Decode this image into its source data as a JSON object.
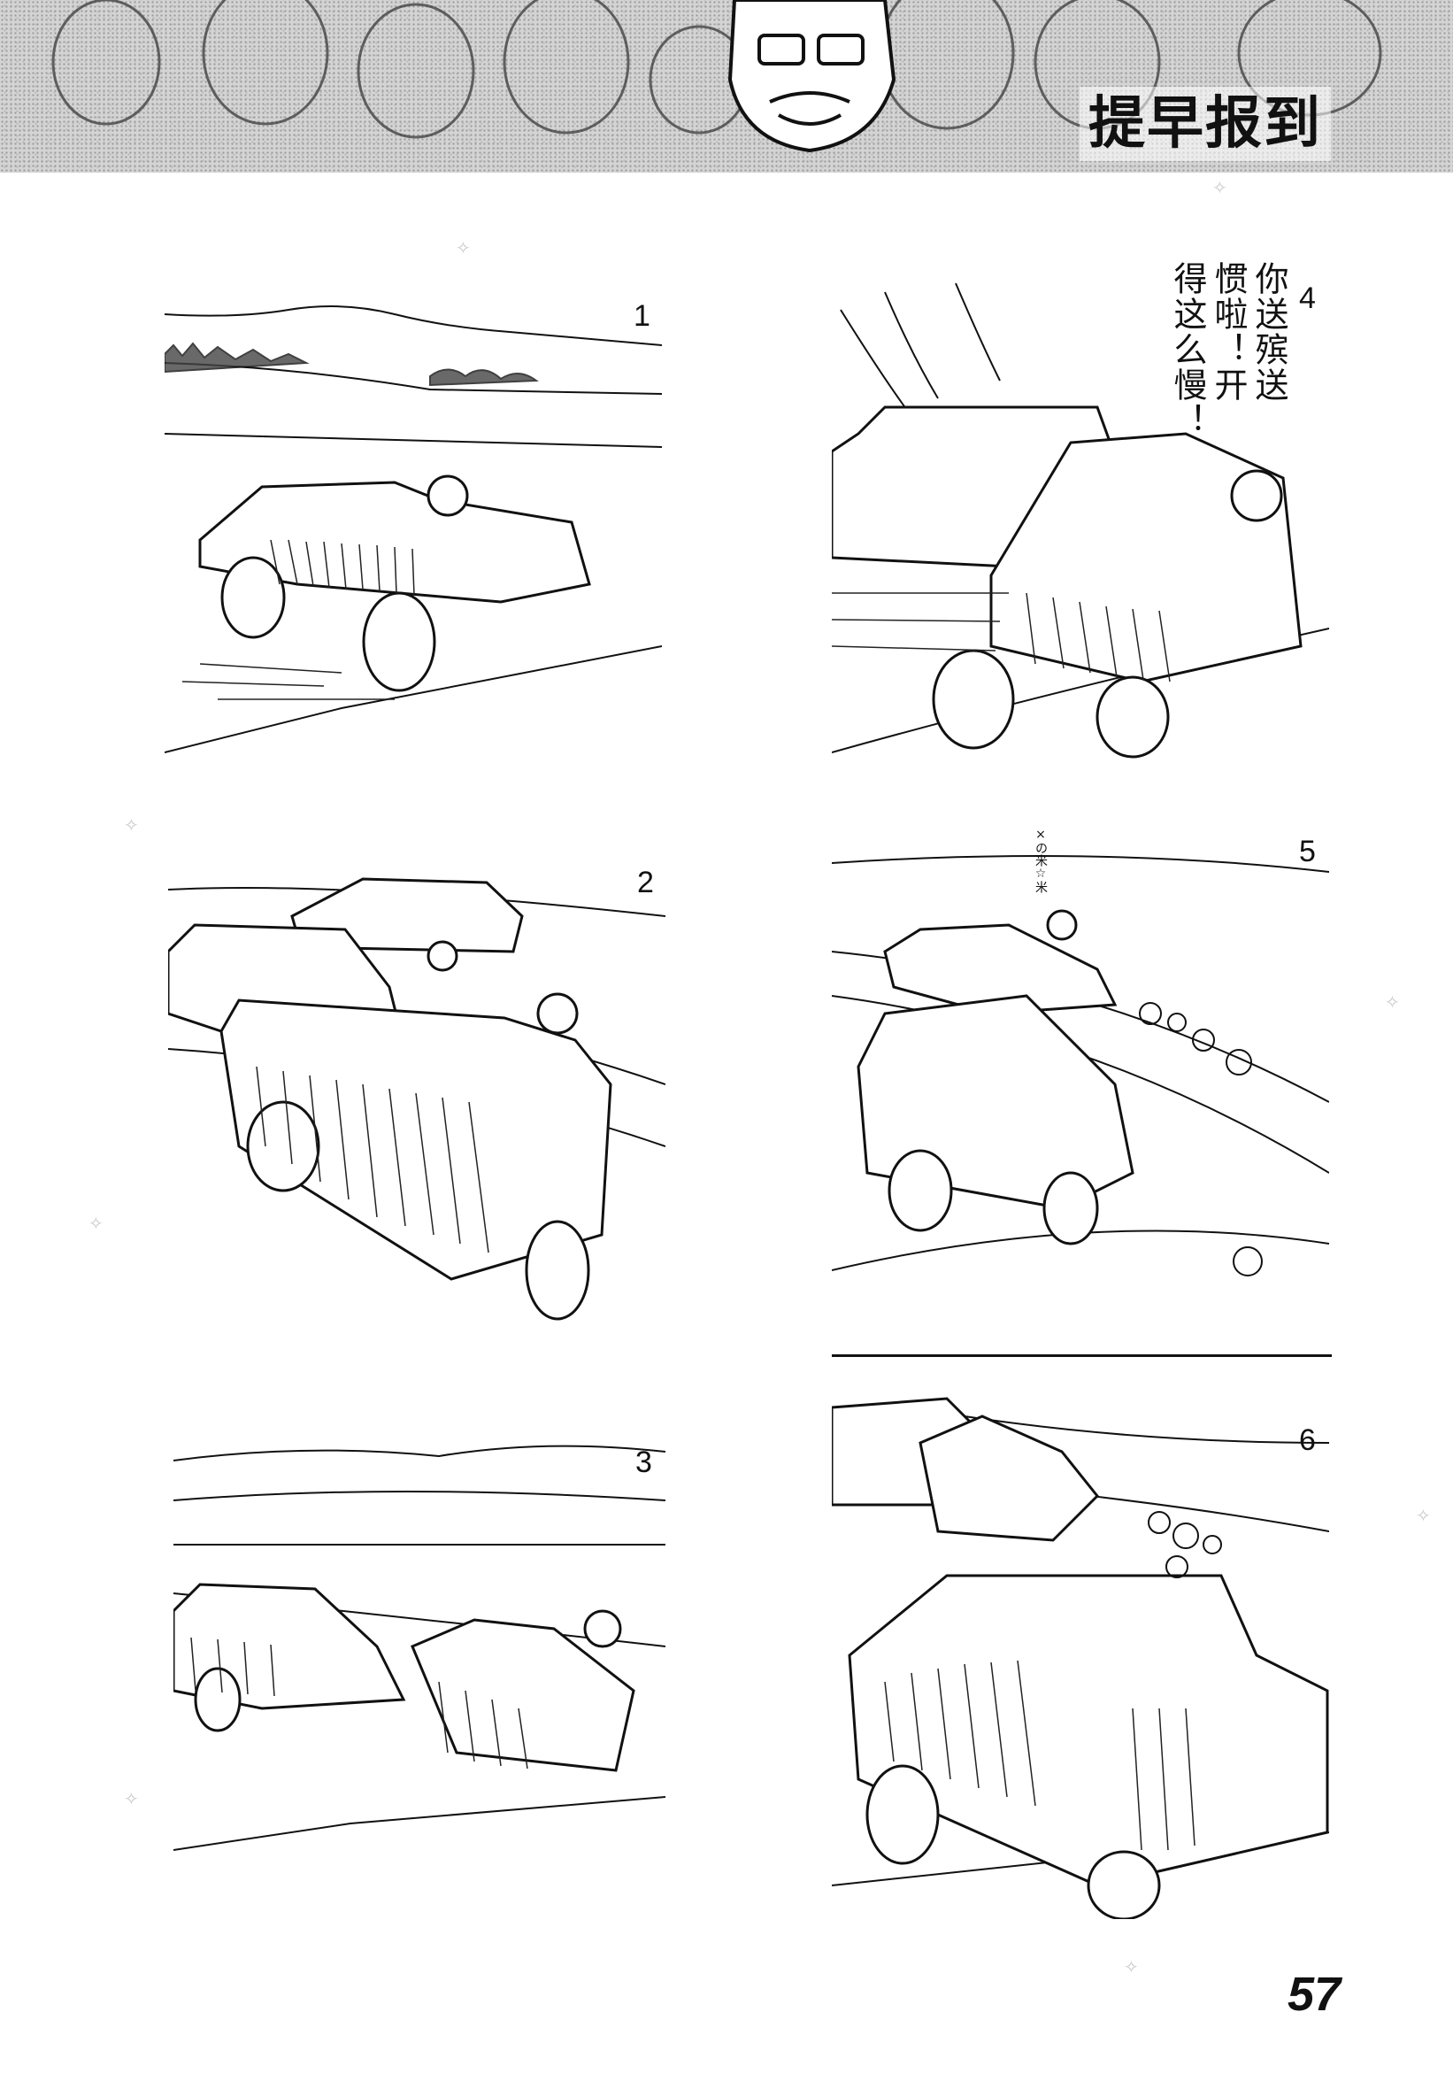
{
  "header": {
    "title": "提早报到"
  },
  "panels": [
    {
      "number": "1"
    },
    {
      "number": "2"
    },
    {
      "number": "3"
    },
    {
      "number": "4",
      "speech": [
        "你送殡送",
        "惯啦！开",
        "得这么慢！"
      ]
    },
    {
      "number": "5",
      "sfx": "×の米☆米"
    },
    {
      "number": "6"
    }
  ],
  "footer": {
    "page_number": "57"
  }
}
